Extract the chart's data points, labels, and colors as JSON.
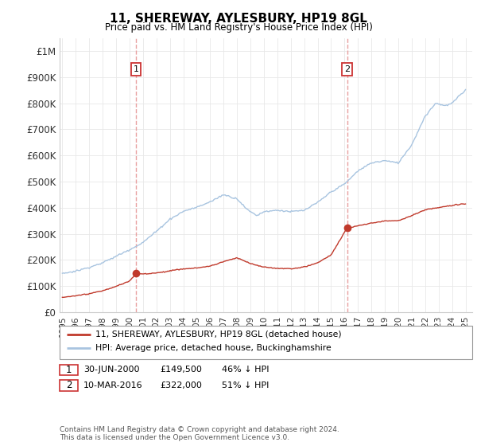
{
  "title": "11, SHEREWAY, AYLESBURY, HP19 8GL",
  "subtitle": "Price paid vs. HM Land Registry's House Price Index (HPI)",
  "hpi_color": "#a8c4e0",
  "price_color": "#c0392b",
  "vline_color": "#e8a0a0",
  "marker1_date_x": 2000.49,
  "marker1_price": 149500,
  "marker2_date_x": 2016.19,
  "marker2_price": 322000,
  "legend_line1": "11, SHEREWAY, AYLESBURY, HP19 8GL (detached house)",
  "legend_line2": "HPI: Average price, detached house, Buckinghamshire",
  "marker1_col1": "30-JUN-2000",
  "marker1_col2": "£149,500",
  "marker1_col3": "46% ↓ HPI",
  "marker2_col1": "10-MAR-2016",
  "marker2_col2": "£322,000",
  "marker2_col3": "51% ↓ HPI",
  "footnote1": "Contains HM Land Registry data © Crown copyright and database right 2024.",
  "footnote2": "This data is licensed under the Open Government Licence v3.0.",
  "ytick_labels": [
    "£0",
    "£100K",
    "£200K",
    "£300K",
    "£400K",
    "£500K",
    "£600K",
    "£700K",
    "£800K",
    "£900K",
    "£1M"
  ],
  "ytick_values": [
    0,
    100000,
    200000,
    300000,
    400000,
    500000,
    600000,
    700000,
    800000,
    900000,
    1000000
  ],
  "ylim_max": 1050000,
  "xmin": 1994.8,
  "xmax": 2025.5
}
